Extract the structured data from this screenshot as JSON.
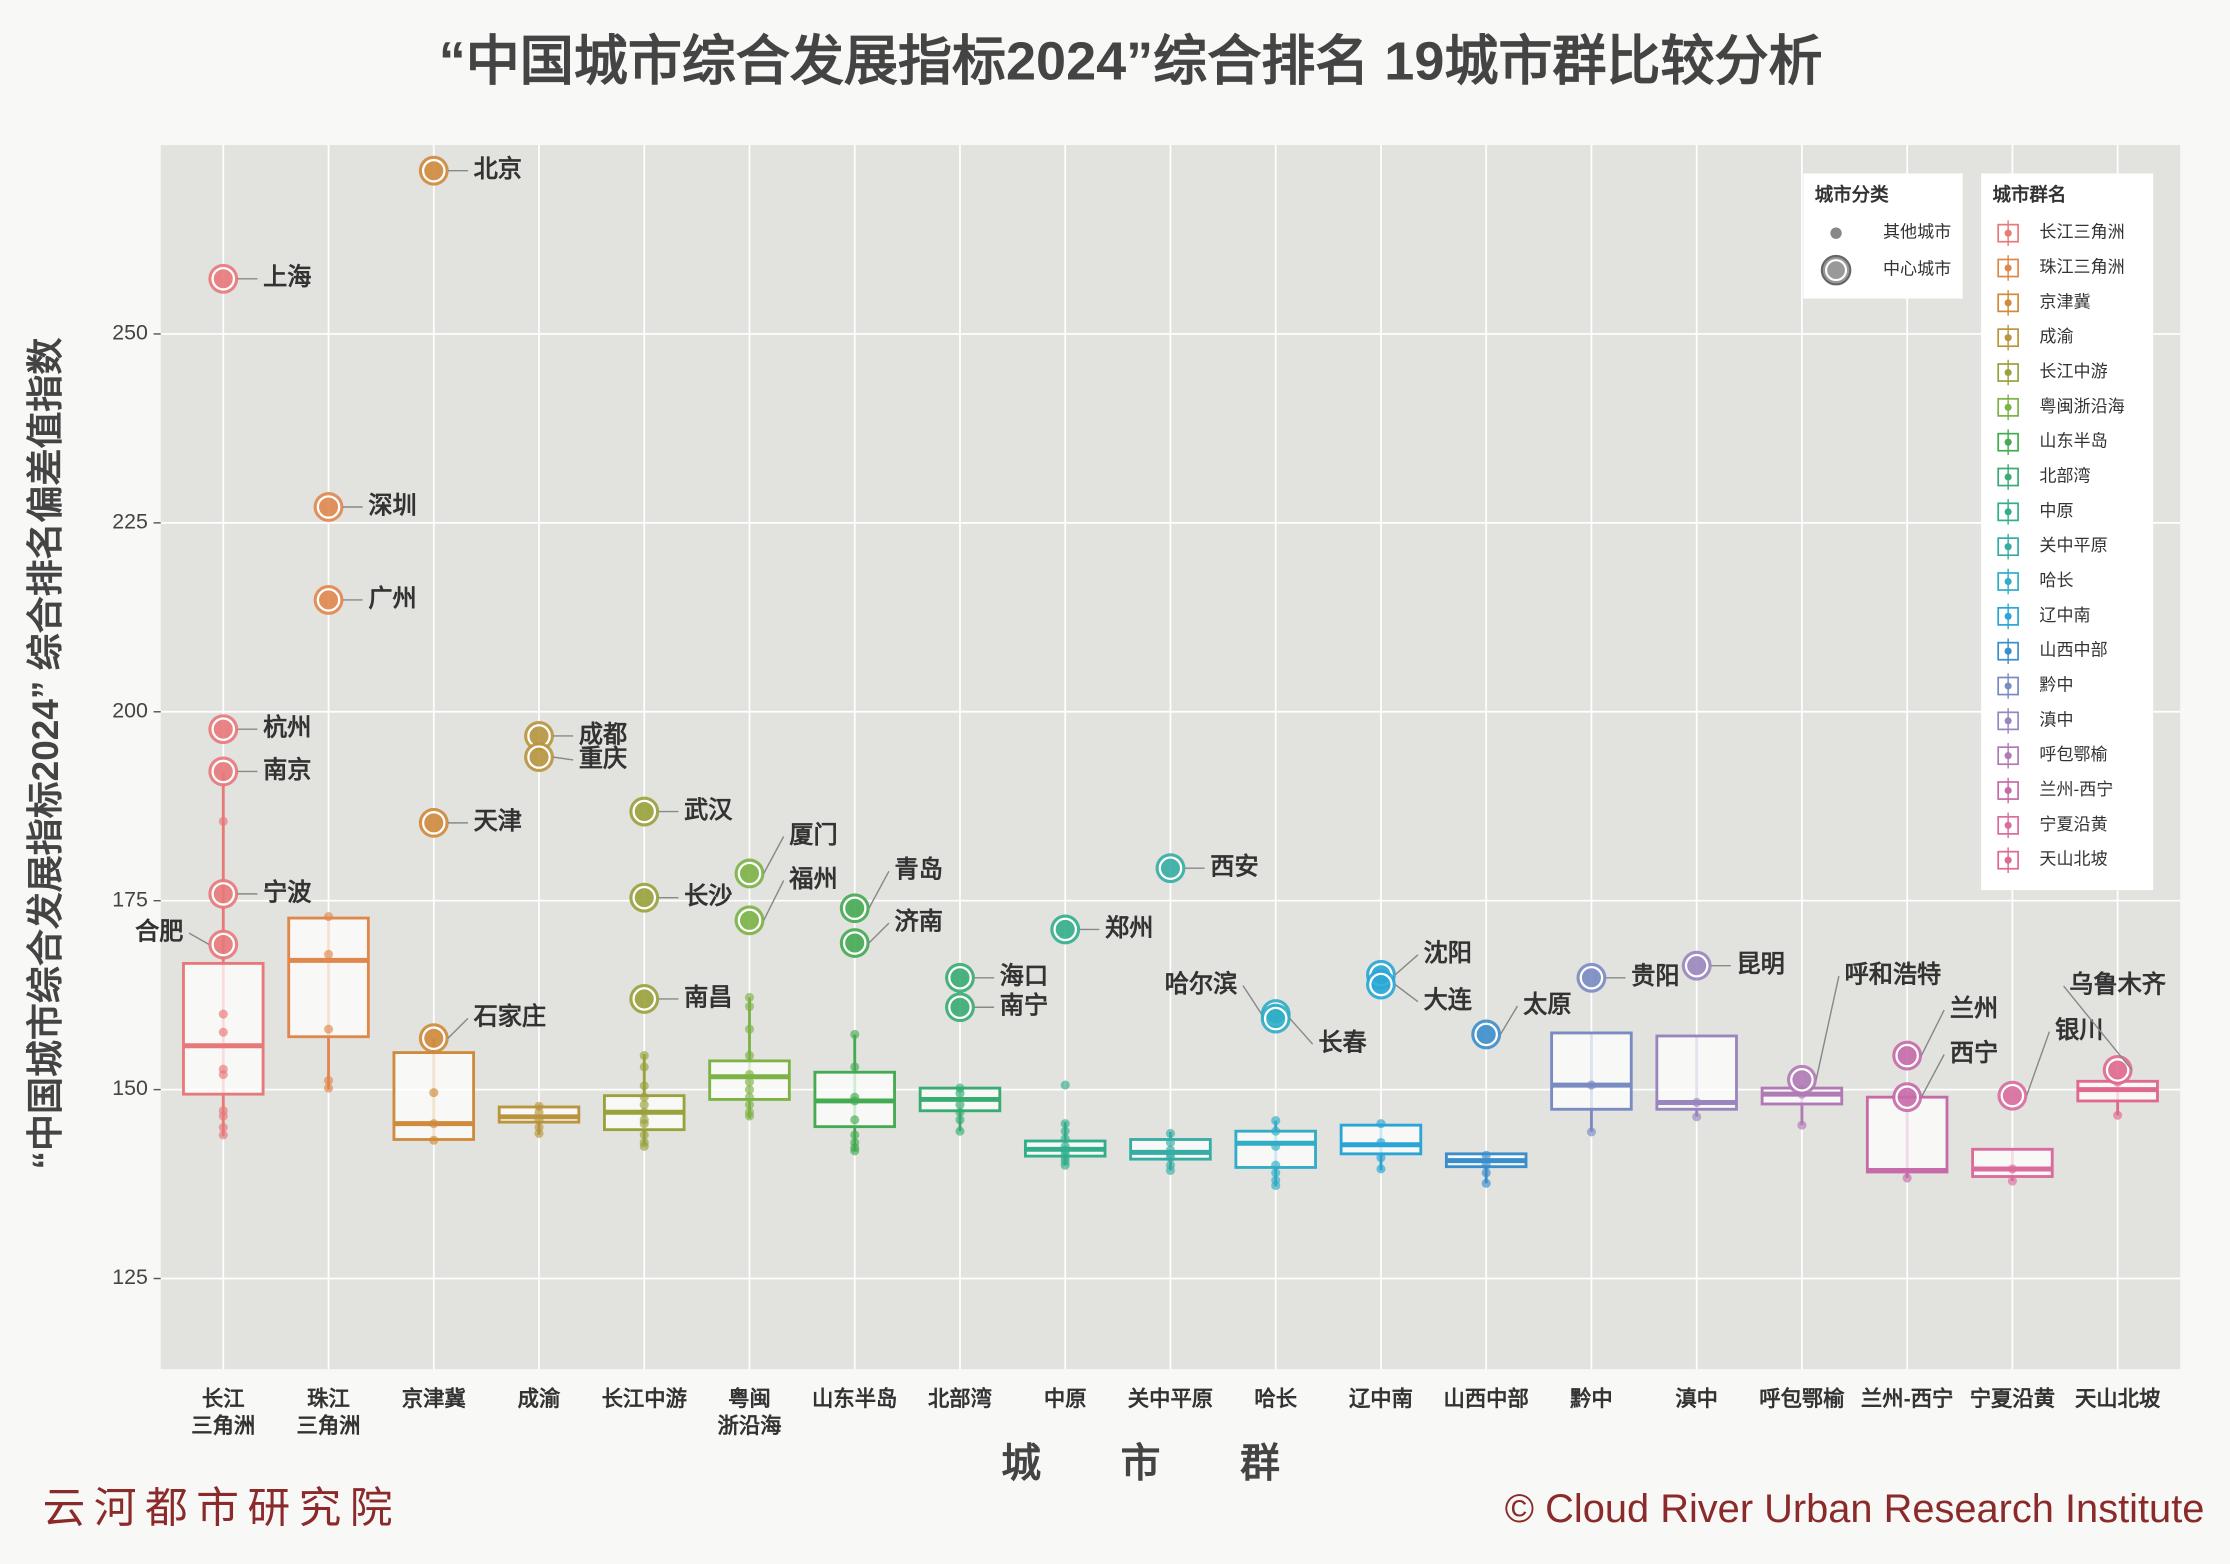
{
  "chart_data": {
    "type": "box",
    "title": "“中国城市综合发展指标2024”综合排名 19城市群比较分析",
    "y_label": "“中国城市综合发展指标2024” 综合排名偏差值指数",
    "x_label": "城市群",
    "source_left": "云河都市研究院",
    "source_right": "© Cloud River Urban Research Institute",
    "ylim": [
      113,
      275
    ],
    "yticks": [
      125,
      150,
      175,
      200,
      225,
      250
    ],
    "grid": true,
    "legend_kind_title": "城市分类",
    "legend_kinds": [
      "其他城市",
      "中心城市"
    ],
    "legend_group_title": "城市群名",
    "groups": [
      {
        "name": "长江三角洲",
        "tick_label": [
          "长江",
          "三角洲"
        ],
        "color": "#e8797a",
        "box": {
          "low": 143.8,
          "q1": 149.4,
          "median": 155.8,
          "q3": 166.7,
          "high": 192.1
        },
        "centers": [
          {
            "name": "上海",
            "value": 257.3
          },
          {
            "name": "杭州",
            "value": 197.7
          },
          {
            "name": "南京",
            "value": 192.1
          },
          {
            "name": "宁波",
            "value": 175.9
          },
          {
            "name": "合肥",
            "value": 169.2
          }
        ],
        "others": [
          185.5,
          160,
          157.6,
          152.7,
          152,
          147.2,
          146.5,
          145,
          144
        ]
      },
      {
        "name": "珠江三角洲",
        "tick_label": [
          "珠江",
          "三角洲"
        ],
        "color": "#e0874e",
        "box": {
          "low": 150,
          "q1": 157,
          "median": 167.1,
          "q3": 172.7,
          "high": 172.9
        },
        "centers": [
          {
            "name": "深圳",
            "value": 227.1
          },
          {
            "name": "广州",
            "value": 214.8
          }
        ],
        "others": [
          172.9,
          167.9,
          158,
          151.2,
          150.2
        ]
      },
      {
        "name": "京津冀",
        "tick_label": [
          "京津冀"
        ],
        "color": "#cf8a3c",
        "box": {
          "low": 143.2,
          "q1": 143.4,
          "median": 145.5,
          "q3": 154.9,
          "high": 156.8
        },
        "centers": [
          {
            "name": "北京",
            "value": 271.6
          },
          {
            "name": "天津",
            "value": 185.3
          },
          {
            "name": "石家庄",
            "value": 156.8
          }
        ],
        "others": [
          149.6,
          145.5,
          143.3
        ]
      },
      {
        "name": "成渝",
        "tick_label": [
          "成渝"
        ],
        "color": "#b8953e",
        "box": {
          "low": 144,
          "q1": 145.7,
          "median": 146.4,
          "q3": 147.7,
          "high": 148
        },
        "centers": [
          {
            "name": "成都",
            "value": 196.8
          },
          {
            "name": "重庆",
            "value": 194
          }
        ],
        "others": [
          147.8,
          147,
          146,
          145,
          144.2
        ]
      },
      {
        "name": "长江中游",
        "tick_label": [
          "长江中游"
        ],
        "color": "#9aa23c",
        "box": {
          "low": 142.7,
          "q1": 144.7,
          "median": 147,
          "q3": 149.2,
          "high": 154.7
        },
        "centers": [
          {
            "name": "武汉",
            "value": 186.8
          },
          {
            "name": "长沙",
            "value": 175.4
          },
          {
            "name": "南昌",
            "value": 162
          }
        ],
        "others": [
          154.5,
          153,
          150.5,
          149,
          148,
          147,
          146,
          145.5,
          144,
          143,
          142.5
        ]
      },
      {
        "name": "粤闽浙沿海",
        "tick_label": [
          "粤闽",
          "浙沿海"
        ],
        "color": "#7cb246",
        "box": {
          "low": 146.2,
          "q1": 148.7,
          "median": 151.7,
          "q3": 153.8,
          "high": 162.2
        },
        "centers": [
          {
            "name": "厦门",
            "value": 178.6
          },
          {
            "name": "福州",
            "value": 172.4
          }
        ],
        "others": [
          162.2,
          161,
          158,
          154.5,
          152,
          151,
          150,
          149,
          148,
          147,
          146.5
        ]
      },
      {
        "name": "山东半岛",
        "tick_label": [
          "山东半岛"
        ],
        "color": "#45ab52",
        "box": {
          "low": 141.9,
          "q1": 145.1,
          "median": 148.5,
          "q3": 152.3,
          "high": 157.3
        },
        "centers": [
          {
            "name": "青岛",
            "value": 174
          },
          {
            "name": "济南",
            "value": 169.4
          }
        ],
        "others": [
          157.3,
          153,
          149,
          148.5,
          146,
          144,
          143,
          142.3,
          141.9
        ]
      },
      {
        "name": "北部湾",
        "tick_label": [
          "北部湾"
        ],
        "color": "#38ac72",
        "box": {
          "low": 144.5,
          "q1": 147.2,
          "median": 148.7,
          "q3": 150.2,
          "high": 150.3
        },
        "centers": [
          {
            "name": "海口",
            "value": 164.8
          },
          {
            "name": "南宁",
            "value": 160.9
          }
        ],
        "others": [
          150.2,
          149.5,
          148,
          147,
          146,
          144.5
        ]
      },
      {
        "name": "中原",
        "tick_label": [
          "中原"
        ],
        "color": "#33ae8c",
        "box": {
          "low": 140,
          "q1": 141.2,
          "median": 142.1,
          "q3": 143.2,
          "high": 145.7
        },
        "centers": [
          {
            "name": "郑州",
            "value": 171.2
          }
        ],
        "others": [
          150.6,
          145.5,
          144.5,
          143.5,
          142.5,
          142,
          141.5,
          141,
          140.5,
          140
        ]
      },
      {
        "name": "关中平原",
        "tick_label": [
          "关中平原"
        ],
        "color": "#36ada4",
        "box": {
          "low": 139.3,
          "q1": 140.8,
          "median": 141.7,
          "q3": 143.4,
          "high": 144.4
        },
        "centers": [
          {
            "name": "西安",
            "value": 179.3
          }
        ],
        "others": [
          144.2,
          143,
          142,
          141.5,
          141,
          140,
          139.3
        ]
      },
      {
        "name": "哈长",
        "tick_label": [
          "哈长"
        ],
        "color": "#31adc6",
        "box": {
          "low": 137.2,
          "q1": 139.7,
          "median": 142.9,
          "q3": 144.5,
          "high": 145.9
        },
        "centers": [
          {
            "name": "哈尔滨",
            "value": 160
          },
          {
            "name": "长春",
            "value": 159.4
          }
        ],
        "others": [
          145.9,
          144.5,
          142.5,
          140,
          139,
          138,
          137.3
        ]
      },
      {
        "name": "辽中南",
        "tick_label": [
          "辽中南"
        ],
        "color": "#2aa6d6",
        "box": {
          "low": 139.3,
          "q1": 141.5,
          "median": 142.7,
          "q3": 145.3,
          "high": 145.5
        },
        "centers": [
          {
            "name": "沈阳",
            "value": 165.2
          },
          {
            "name": "大连",
            "value": 163.9
          }
        ],
        "others": [
          145.5,
          143,
          141,
          139.5
        ]
      },
      {
        "name": "山西中部",
        "tick_label": [
          "山西中部"
        ],
        "color": "#3a8ecb",
        "box": {
          "low": 137.6,
          "q1": 139.8,
          "median": 140.6,
          "q3": 141.5,
          "high": 141.5
        },
        "centers": [
          {
            "name": "太原",
            "value": 157.3
          }
        ],
        "others": [
          141.3,
          140,
          139,
          137.6
        ]
      },
      {
        "name": "黔中",
        "tick_label": [
          "黔中"
        ],
        "color": "#7a8bc2",
        "box": {
          "low": 144.4,
          "q1": 147.4,
          "median": 150.6,
          "q3": 157.5,
          "high": 157.5
        },
        "centers": [
          {
            "name": "贵阳",
            "value": 164.8
          }
        ],
        "others": [
          150.6,
          144.4
        ]
      },
      {
        "name": "滇中",
        "tick_label": [
          "滇中"
        ],
        "color": "#9a86bf",
        "box": {
          "low": 146.4,
          "q1": 147.4,
          "median": 148.3,
          "q3": 157.1,
          "high": 157.1
        },
        "centers": [
          {
            "name": "昆明",
            "value": 166.4
          }
        ],
        "others": [
          148.3,
          146.4
        ]
      },
      {
        "name": "呼包鄂榆",
        "tick_label": [
          "呼包鄂榆"
        ],
        "color": "#b07ab5",
        "box": {
          "low": 145.3,
          "q1": 148.1,
          "median": 149.4,
          "q3": 150.2,
          "high": 150.6
        },
        "centers": [
          {
            "name": "呼和浩特",
            "value": 151.3
          }
        ],
        "others": [
          149.4,
          145.3
        ]
      },
      {
        "name": "兰州-西宁",
        "tick_label": [
          "兰州-西宁"
        ],
        "color": "#c76aa8",
        "box": {
          "low": 138.3,
          "q1": 139.1,
          "median": 139.3,
          "q3": 149,
          "high": 149
        },
        "centers": [
          {
            "name": "兰州",
            "value": 154.5
          },
          {
            "name": "西宁",
            "value": 149
          }
        ],
        "others": [
          138.3
        ]
      },
      {
        "name": "宁夏沿黄",
        "tick_label": [
          "宁夏沿黄"
        ],
        "color": "#da6b9c",
        "box": {
          "low": 137.9,
          "q1": 138.5,
          "median": 139.5,
          "q3": 142.1,
          "high": 142.1
        },
        "centers": [
          {
            "name": "银川",
            "value": 149.2
          }
        ],
        "others": [
          139.5,
          137.9
        ]
      },
      {
        "name": "天山北坡",
        "tick_label": [
          "天山北坡"
        ],
        "color": "#e0698f",
        "box": {
          "low": 146.6,
          "q1": 148.5,
          "median": 150,
          "q3": 151.1,
          "high": 151.1
        },
        "centers": [
          {
            "name": "乌鲁木齐",
            "value": 152.6
          }
        ],
        "others": [
          151,
          146.6
        ]
      }
    ]
  }
}
